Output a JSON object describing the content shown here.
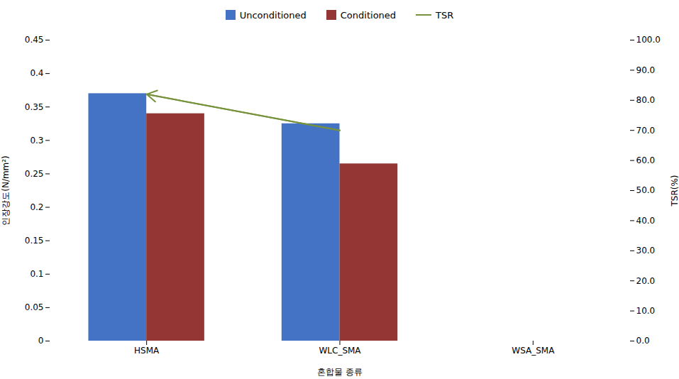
{
  "chart_data": {
    "type": "bar",
    "xlabel": "혼합물 종류",
    "ylabel": "인장강도(N/mm²)",
    "y2label": "TSR(%)",
    "categories": [
      "HSMA",
      "WLC_SMA",
      "WSA_SMA"
    ],
    "series": [
      {
        "name": "Unconditioned",
        "color": "#4472C4",
        "values": [
          0.37,
          0.325,
          0.0
        ]
      },
      {
        "name": "Conditioned",
        "color": "#943634",
        "values": [
          0.34,
          0.265,
          0.0
        ]
      },
      {
        "name": "TSR",
        "type": "line",
        "axis": "y2",
        "color": "#76923C",
        "marker": "arrow",
        "values": [
          82.0,
          70.0,
          null
        ]
      }
    ],
    "ylim": [
      0,
      0.45
    ],
    "yticks": [
      0,
      0.05,
      0.1,
      0.15,
      0.2,
      0.25,
      0.3,
      0.35,
      0.4,
      0.45
    ],
    "y2lim": [
      0.0,
      100.0
    ],
    "y2ticks": [
      {
        "value": 0.0,
        "label": "0.0"
      },
      {
        "value": 10.0,
        "label": "10.0"
      },
      {
        "value": 20.0,
        "label": "20.0"
      },
      {
        "value": 30.0,
        "label": "30.0"
      },
      {
        "value": 40.0,
        "label": "40.0"
      },
      {
        "value": 50.0,
        "label": "50.0"
      },
      {
        "value": 60.0,
        "label": "60.0"
      },
      {
        "value": 70.0,
        "label": "70.0"
      },
      {
        "value": 80.0,
        "label": "80.0"
      },
      {
        "value": 90.0,
        "label": "90.0"
      },
      {
        "value": 100.0,
        "label": "100.0"
      }
    ],
    "legend": "top",
    "grid": false
  }
}
